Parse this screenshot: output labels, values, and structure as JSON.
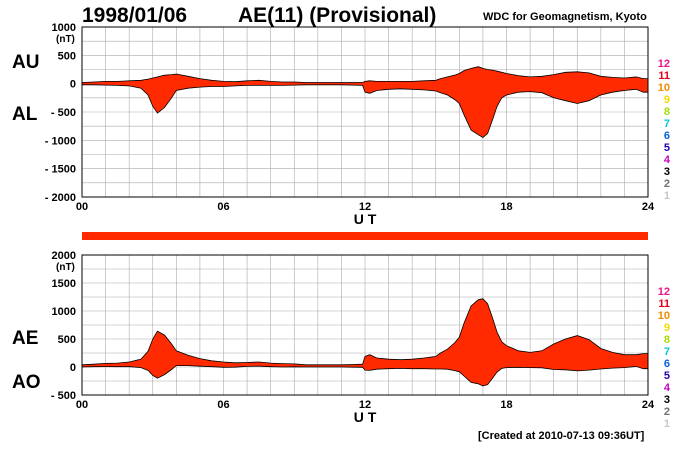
{
  "header": {
    "date": "1998/01/06",
    "title": "AE(11) (Provisional)",
    "source": "WDC for Geomagnetism, Kyoto"
  },
  "footer": {
    "created": "[Created at 2010-07-13 09:36UT]"
  },
  "colors": {
    "fill": "#ff2a00",
    "line": "#000000",
    "grid": "#aaaaaa",
    "bar": "#ff2a00"
  },
  "legend": {
    "entries": [
      {
        "label": "12",
        "color": "#e8198b"
      },
      {
        "label": "11",
        "color": "#e3001b"
      },
      {
        "label": "10",
        "color": "#f08c00"
      },
      {
        "label": "9",
        "color": "#f5d800"
      },
      {
        "label": "8",
        "color": "#a6dc00"
      },
      {
        "label": "7",
        "color": "#00c8e0"
      },
      {
        "label": "6",
        "color": "#0064dc"
      },
      {
        "label": "5",
        "color": "#2800b4"
      },
      {
        "label": "4",
        "color": "#c800c8"
      },
      {
        "label": "3",
        "color": "#000000"
      },
      {
        "label": "2",
        "color": "#707070"
      },
      {
        "label": "1",
        "color": "#c8c8c8"
      }
    ]
  },
  "chart_data": [
    {
      "type": "area",
      "upper_label": "AU",
      "lower_label": "AL",
      "unit": "(nT)",
      "xlabel": "U T",
      "xlim": [
        0,
        24
      ],
      "ylim": [
        -2000,
        1000
      ],
      "yticks": [
        1000,
        500,
        0,
        -500,
        -1000,
        -1500,
        -2000
      ],
      "ytick_labels": [
        "1000",
        "500",
        "0",
        "- 500",
        "- 1000",
        "- 1500",
        "- 2000"
      ],
      "xticks": [
        0,
        6,
        12,
        18,
        24
      ],
      "xtick_labels": [
        "00",
        "06",
        "12",
        "18",
        "24"
      ],
      "grid": true,
      "x": [
        0,
        0.5,
        1,
        1.5,
        2,
        2.5,
        2.8,
        3,
        3.2,
        3.5,
        3.8,
        4,
        4.5,
        5,
        5.5,
        6,
        6.5,
        7,
        7.5,
        8,
        8.5,
        9,
        9.5,
        10,
        10.5,
        11,
        11.5,
        11.9,
        12,
        12.2,
        12.5,
        13,
        13.5,
        14,
        14.5,
        15,
        15.2,
        15.5,
        15.8,
        16,
        16.2,
        16.5,
        16.8,
        17,
        17.2,
        17.4,
        17.6,
        17.8,
        18,
        18.5,
        19,
        19.5,
        20,
        20.5,
        21,
        21.5,
        22,
        22.5,
        23,
        23.5,
        23.8,
        24
      ],
      "series": [
        {
          "name": "AU",
          "values": [
            20,
            30,
            40,
            40,
            50,
            60,
            80,
            100,
            120,
            150,
            160,
            170,
            130,
            90,
            60,
            40,
            35,
            50,
            60,
            40,
            30,
            30,
            20,
            20,
            20,
            20,
            20,
            20,
            40,
            50,
            40,
            40,
            40,
            40,
            50,
            60,
            90,
            120,
            150,
            180,
            230,
            270,
            300,
            270,
            250,
            240,
            220,
            200,
            180,
            140,
            120,
            130,
            160,
            200,
            210,
            190,
            130,
            110,
            100,
            120,
            90,
            90
          ]
        },
        {
          "name": "AL",
          "values": [
            -20,
            -20,
            -25,
            -30,
            -40,
            -80,
            -200,
            -400,
            -520,
            -420,
            -250,
            -120,
            -80,
            -60,
            -50,
            -50,
            -40,
            -30,
            -30,
            -30,
            -30,
            -25,
            -20,
            -20,
            -20,
            -20,
            -25,
            -30,
            -150,
            -170,
            -120,
            -100,
            -90,
            -100,
            -110,
            -130,
            -160,
            -200,
            -280,
            -350,
            -550,
            -820,
            -900,
            -950,
            -880,
            -650,
            -400,
            -250,
            -200,
            -150,
            -140,
            -160,
            -250,
            -300,
            -350,
            -300,
            -200,
            -150,
            -120,
            -100,
            -150,
            -150
          ]
        }
      ]
    },
    {
      "type": "area",
      "upper_label": "AE",
      "lower_label": "AO",
      "unit": "(nT)",
      "xlabel": "U T",
      "xlim": [
        0,
        24
      ],
      "ylim": [
        -500,
        2000
      ],
      "yticks": [
        2000,
        1500,
        1000,
        500,
        0,
        -500
      ],
      "ytick_labels": [
        "2000",
        "1500",
        "1000",
        "500",
        "0",
        "- 500"
      ],
      "xticks": [
        0,
        6,
        12,
        18,
        24
      ],
      "xtick_labels": [
        "00",
        "06",
        "12",
        "18",
        "24"
      ],
      "grid": true,
      "x": [
        0,
        0.5,
        1,
        1.5,
        2,
        2.5,
        2.8,
        3,
        3.2,
        3.5,
        3.8,
        4,
        4.5,
        5,
        5.5,
        6,
        6.5,
        7,
        7.5,
        8,
        8.5,
        9,
        9.5,
        10,
        10.5,
        11,
        11.5,
        11.9,
        12,
        12.2,
        12.5,
        13,
        13.5,
        14,
        14.5,
        15,
        15.2,
        15.5,
        15.8,
        16,
        16.2,
        16.5,
        16.8,
        17,
        17.2,
        17.4,
        17.6,
        17.8,
        18,
        18.5,
        19,
        19.5,
        20,
        20.5,
        21,
        21.5,
        22,
        22.5,
        23,
        23.5,
        23.8,
        24
      ],
      "series": [
        {
          "name": "AE",
          "values": [
            40,
            50,
            65,
            70,
            90,
            140,
            280,
            500,
            640,
            570,
            410,
            290,
            210,
            150,
            110,
            90,
            75,
            80,
            90,
            70,
            60,
            55,
            40,
            40,
            40,
            40,
            45,
            50,
            190,
            220,
            160,
            140,
            130,
            140,
            160,
            190,
            250,
            320,
            430,
            530,
            780,
            1090,
            1200,
            1220,
            1130,
            890,
            620,
            450,
            380,
            290,
            260,
            290,
            410,
            500,
            560,
            490,
            330,
            260,
            220,
            220,
            240,
            240
          ]
        },
        {
          "name": "AO",
          "values": [
            0,
            5,
            8,
            5,
            5,
            -10,
            -60,
            -150,
            -200,
            -135,
            -45,
            25,
            25,
            15,
            5,
            -5,
            -3,
            10,
            15,
            5,
            0,
            3,
            0,
            0,
            0,
            0,
            -3,
            -5,
            -55,
            -60,
            -40,
            -30,
            -25,
            -30,
            -30,
            -35,
            -35,
            -40,
            -65,
            -85,
            -160,
            -275,
            -300,
            -340,
            -315,
            -205,
            -90,
            -25,
            -10,
            -5,
            -10,
            -15,
            -45,
            -50,
            -70,
            -55,
            -35,
            -20,
            -10,
            10,
            -30,
            -30
          ]
        }
      ]
    }
  ]
}
